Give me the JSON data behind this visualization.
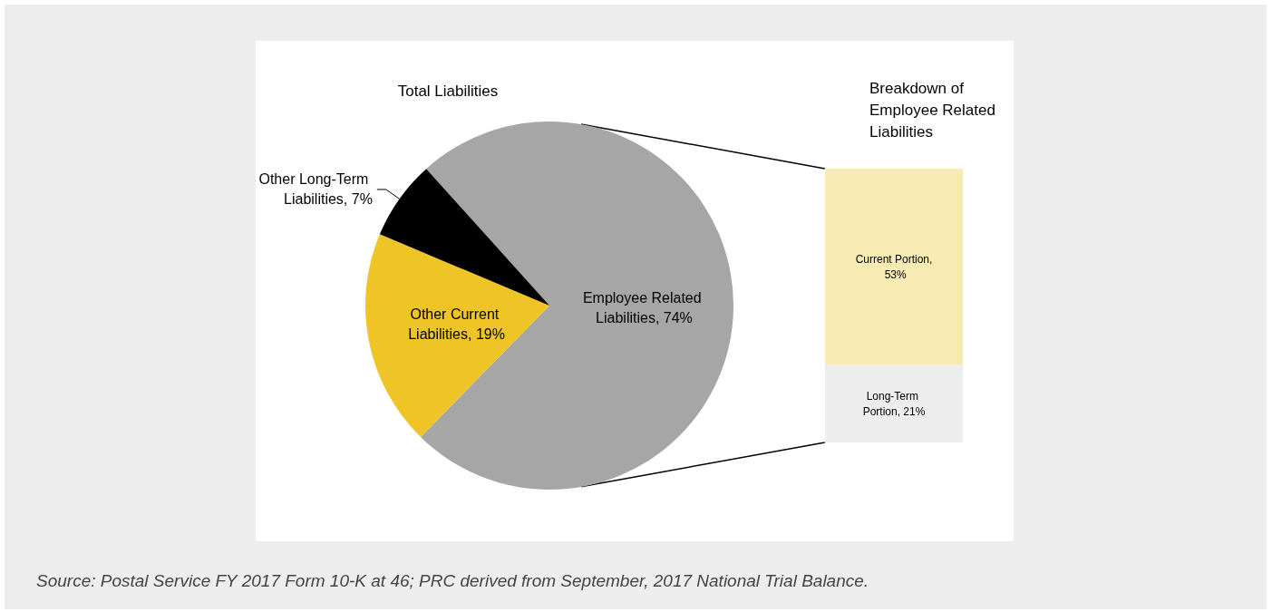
{
  "chart_data": [
    {
      "type": "pie",
      "title": "Total Liabilities",
      "categories": [
        "Employee Related Liabilities",
        "Other Current Liabilities",
        "Other Long-Term Liabilities"
      ],
      "values": [
        74,
        19,
        7
      ],
      "colors": [
        "#a6a6a6",
        "#eec426",
        "#000000"
      ],
      "value_labels": [
        "74%",
        "19%",
        "7%"
      ],
      "annotations": [
        "Source: Postal Service FY 2017 Form 10-K at 46; PRC derived from September, 2017 National Trial Balance."
      ]
    },
    {
      "type": "bar",
      "title": "Breakdown of Employee Related Liabilities",
      "categories": [
        null
      ],
      "stacked": true,
      "series": [
        {
          "color": "#ededed",
          "values": [
            21
          ],
          "value_labels": [
            "Long-Term Portion, 21%"
          ]
        },
        {
          "color": "#f8eab3",
          "values": [
            53
          ],
          "value_labels": [
            "Current Portion, 53%"
          ]
        }
      ]
    }
  ]
}
